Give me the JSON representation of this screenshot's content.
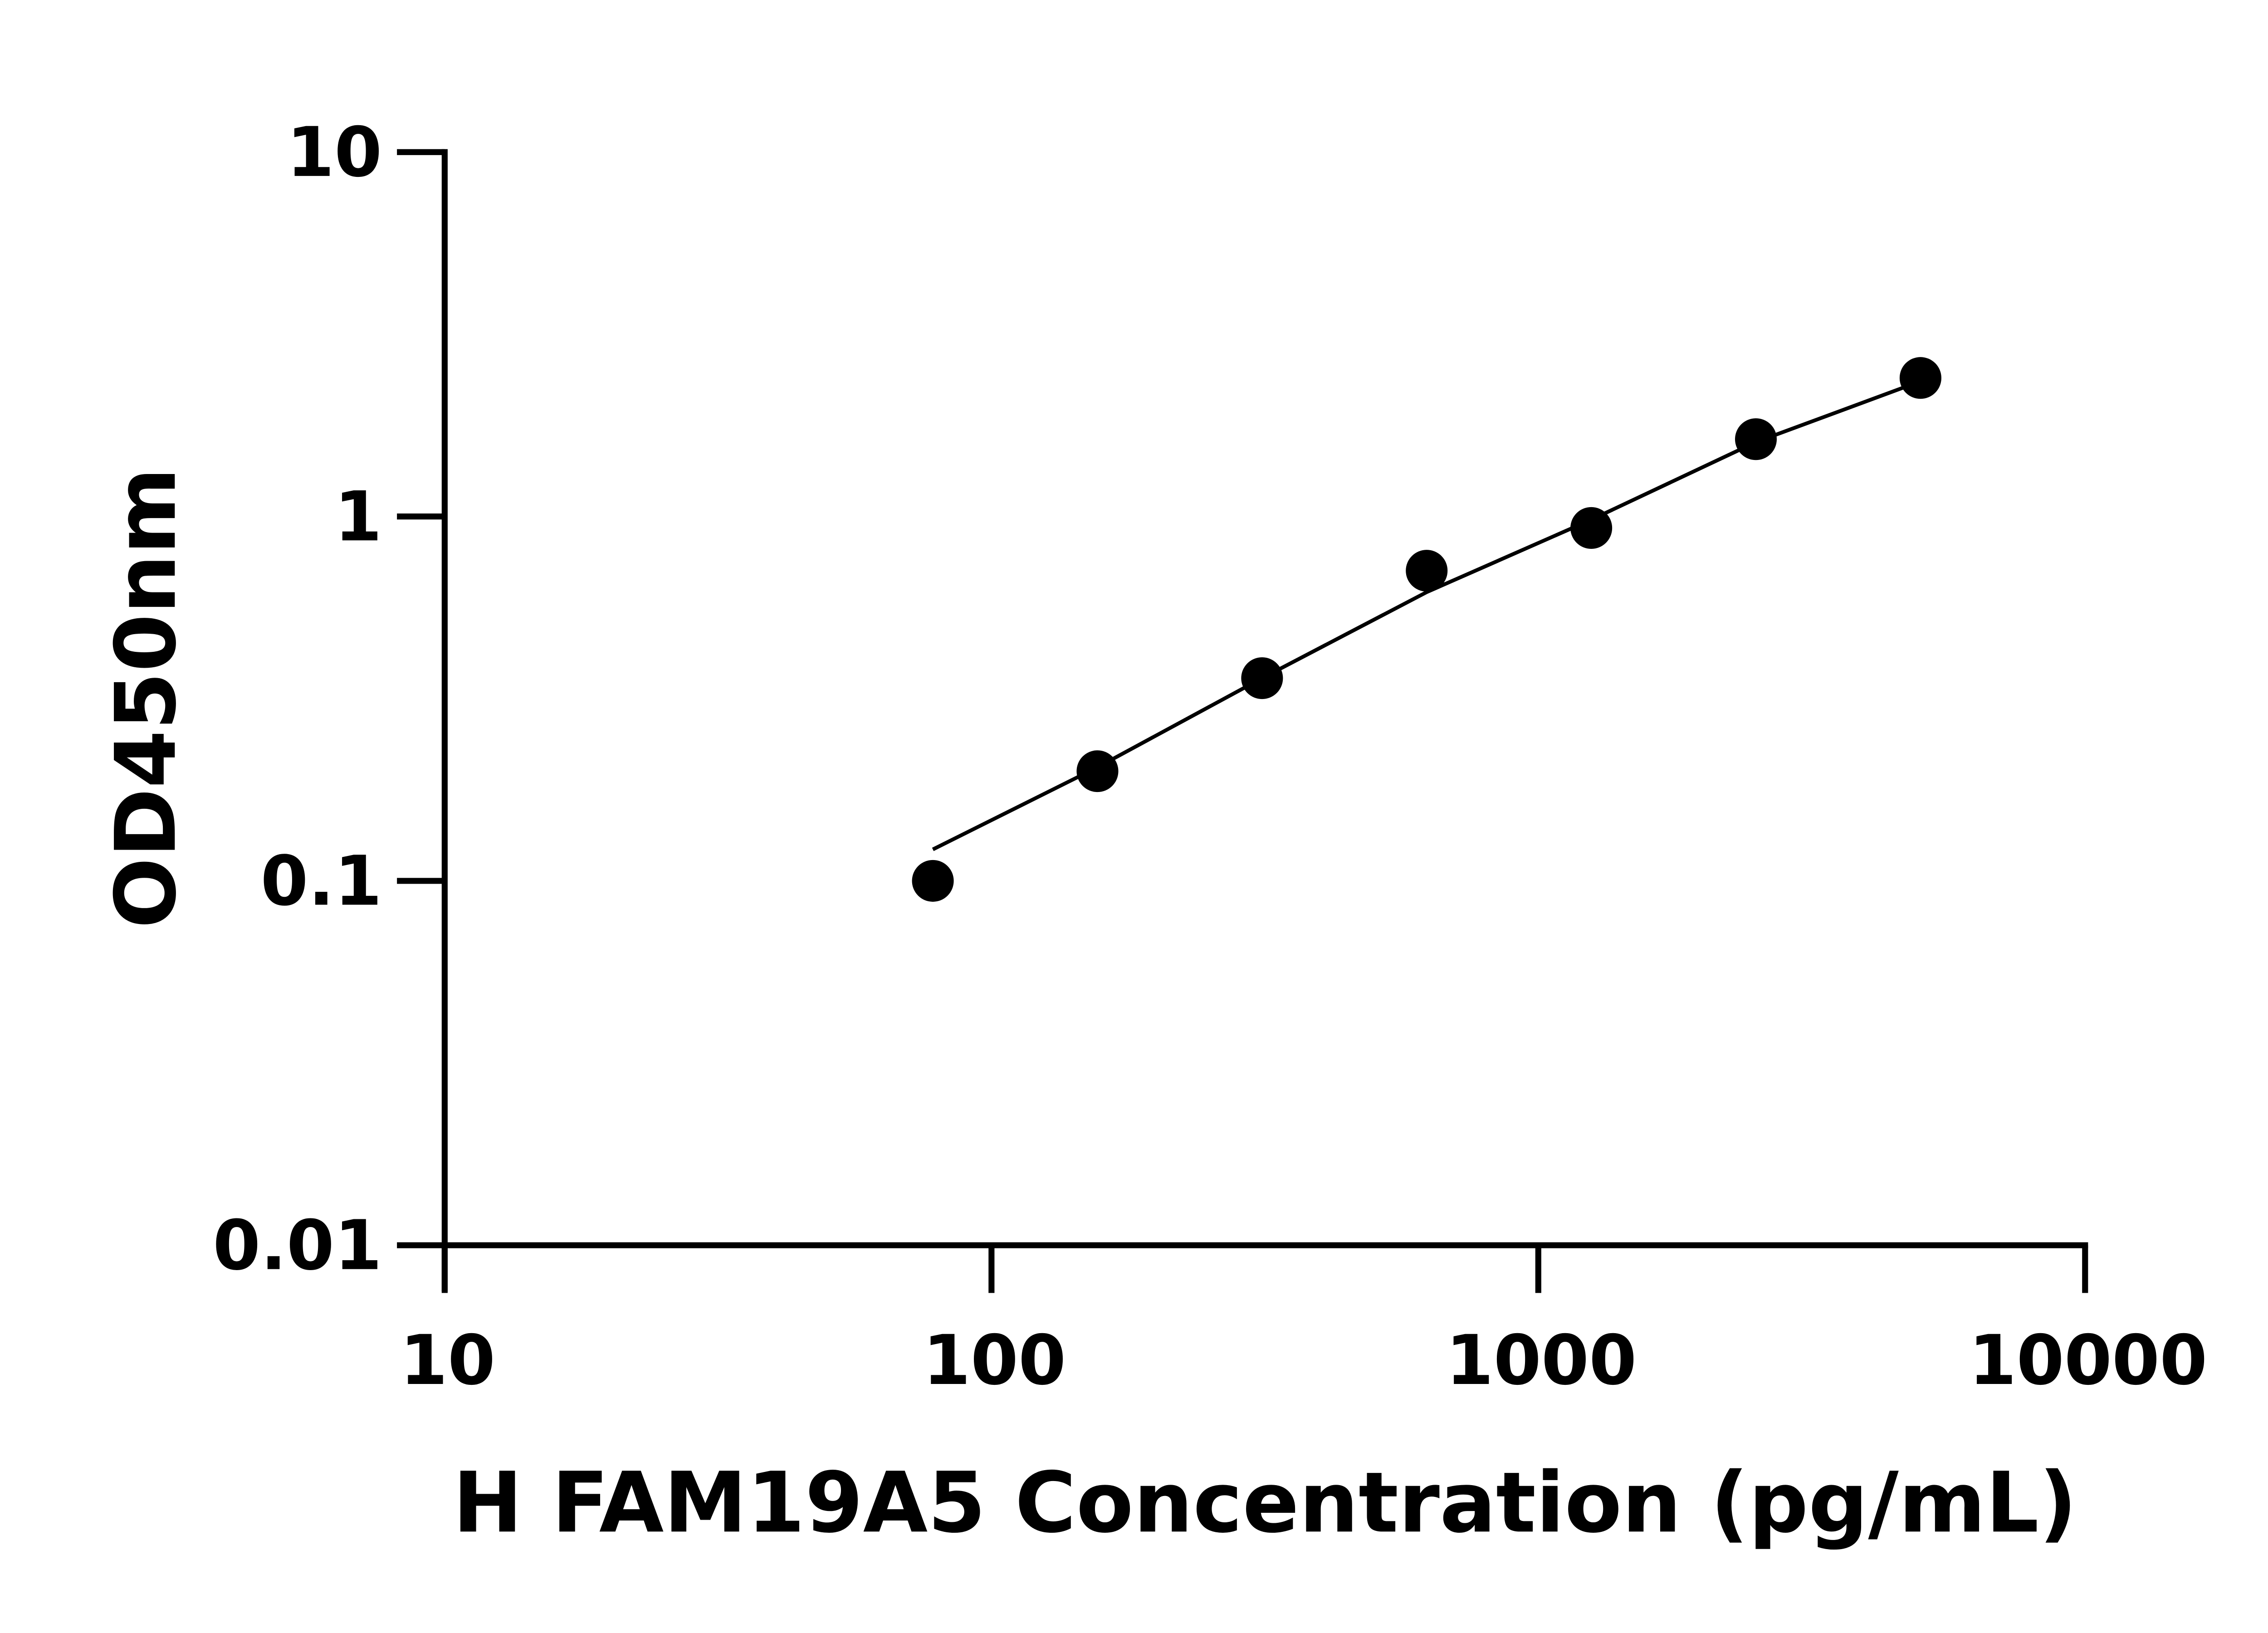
{
  "chart_data": {
    "type": "scatter",
    "title": "",
    "xlabel": "H FAM19A5 Concentration (pg/mL)",
    "ylabel": "OD450nm",
    "x_scale": "log",
    "y_scale": "log",
    "xlim": [
      10,
      10000
    ],
    "ylim": [
      0.01,
      10
    ],
    "x_ticks": [
      "10",
      "100",
      "1000",
      "10000"
    ],
    "y_ticks": [
      "0.01",
      "0.1",
      "1",
      "10"
    ],
    "grid": false,
    "legend": "none",
    "series": [
      {
        "x": [
          78.125,
          156.25,
          312.5,
          625,
          1250,
          2500,
          5000
        ],
        "y": [
          0.1,
          0.2,
          0.36,
          0.71,
          0.93,
          1.63,
          2.4
        ]
      }
    ],
    "fit_curve": {
      "x": [
        78.125,
        156.25,
        312.5,
        625,
        1250,
        2500,
        5000
      ],
      "y": [
        0.122,
        0.205,
        0.36,
        0.62,
        0.98,
        1.6,
        2.35
      ]
    },
    "colors": {
      "marker": "#000000",
      "line": "#000000",
      "axis": "#000000"
    }
  }
}
